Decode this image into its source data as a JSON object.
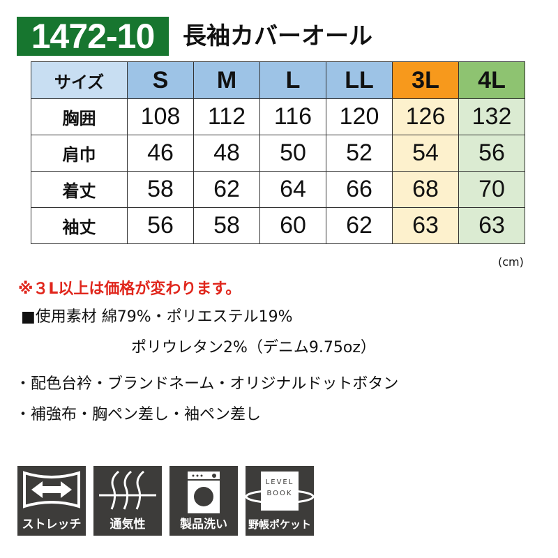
{
  "header": {
    "code": "1472-10",
    "title": "長袖カバーオール"
  },
  "table": {
    "columns": [
      "サイズ",
      "S",
      "M",
      "L",
      "LL",
      "3L",
      "4L"
    ],
    "rows": [
      {
        "label": "胸囲",
        "values": [
          "108",
          "112",
          "116",
          "120",
          "126",
          "132"
        ]
      },
      {
        "label": "肩巾",
        "values": [
          "46",
          "48",
          "50",
          "52",
          "54",
          "56"
        ]
      },
      {
        "label": "着丈",
        "values": [
          "58",
          "62",
          "64",
          "66",
          "68",
          "70"
        ]
      },
      {
        "label": "袖丈",
        "values": [
          "56",
          "58",
          "60",
          "62",
          "63",
          "63"
        ]
      }
    ],
    "unit": "(cm)"
  },
  "note": "※３L以上は価格が変わります。",
  "material": {
    "line1": "■使用素材 綿79%・ポリエステル19%",
    "line2": "ポリウレタン2%（デニム9.75oz）"
  },
  "features": [
    "・配色台衿・ブランドネーム・オリジナルドットボタン",
    "・補強布・胸ペン差し・袖ペン差し"
  ],
  "icons": [
    {
      "name": "stretch-icon",
      "label": "ストレッチ"
    },
    {
      "name": "breathable-icon",
      "label": "通気性"
    },
    {
      "name": "washing-machine-icon",
      "label": "製品洗い",
      "text": ""
    },
    {
      "name": "level-book-icon",
      "label": "野帳ポケット",
      "text1": "LEVEL",
      "text2": "BOOK"
    }
  ],
  "colors": {
    "code_bg": "#17762f",
    "size_header": "#9dc3e6",
    "3L_header": "#f7991c",
    "4L_header": "#8ec371",
    "note": "#e0261c"
  }
}
